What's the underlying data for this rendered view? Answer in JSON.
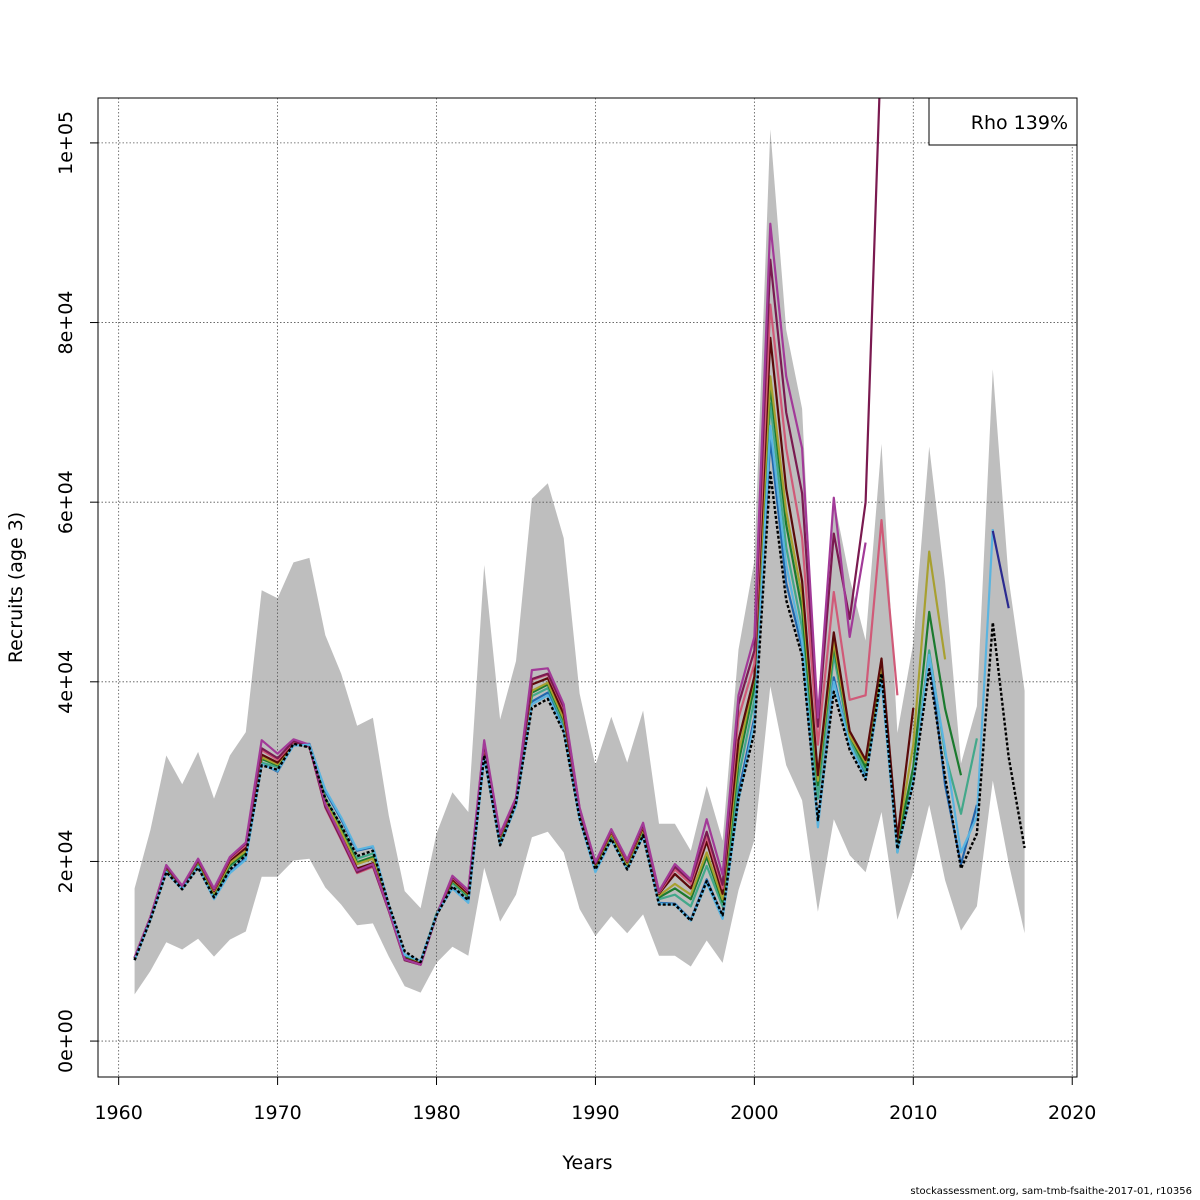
{
  "chart_data": {
    "type": "line",
    "xlabel": "Years",
    "ylabel": "Recruits (age 3)",
    "xlim": [
      1958.7,
      2020.3
    ],
    "ylim": [
      -4000,
      105000
    ],
    "xticks": [
      1960,
      1970,
      1980,
      1990,
      2000,
      2010,
      2020
    ],
    "xtick_labels": [
      "1960",
      "1970",
      "1980",
      "1990",
      "2000",
      "2010",
      "2020"
    ],
    "yticks": [
      0,
      20000,
      40000,
      60000,
      80000,
      100000
    ],
    "ytick_labels": [
      "0e+00",
      "2e+04",
      "4e+04",
      "6e+04",
      "8e+04",
      "1e+05"
    ],
    "grid": true,
    "legend_text": "Rho 139%",
    "legend_position": "top-right",
    "footer": "stockassessment.org, sam-tmb-fsaithe-2017-01, r10356",
    "band": {
      "color": "#bebebe",
      "years": [
        1961,
        1962,
        1963,
        1964,
        1965,
        1966,
        1967,
        1968,
        1969,
        1970,
        1971,
        1972,
        1973,
        1974,
        1975,
        1976,
        1977,
        1978,
        1979,
        1980,
        1981,
        1982,
        1983,
        1984,
        1985,
        1986,
        1987,
        1988,
        1989,
        1990,
        1991,
        1992,
        1993,
        1994,
        1995,
        1996,
        1997,
        1998,
        1999,
        2000,
        2001,
        2002,
        2003,
        2004,
        2005,
        2006,
        2007,
        2008,
        2009,
        2010,
        2011,
        2012,
        2013,
        2014,
        2015,
        2016,
        2017
      ],
      "upper": [
        17000,
        23500,
        31800,
        28600,
        32200,
        27000,
        31800,
        34400,
        50200,
        49300,
        53300,
        53800,
        45200,
        40900,
        35100,
        36000,
        25100,
        16700,
        14800,
        23100,
        27700,
        25500,
        53000,
        35800,
        42300,
        60400,
        62100,
        56000,
        38700,
        30700,
        36100,
        31000,
        36800,
        24200,
        24200,
        21200,
        28400,
        22300,
        43600,
        53500,
        101500,
        79200,
        70400,
        34500,
        60400,
        51500,
        44600,
        66500,
        34300,
        44300,
        66200,
        51100,
        30900,
        37300,
        74800,
        51400,
        39000
      ],
      "lower": [
        5200,
        7800,
        11000,
        10200,
        11400,
        9400,
        11300,
        12200,
        18300,
        18300,
        20100,
        20300,
        17100,
        15200,
        12900,
        13100,
        9400,
        6100,
        5400,
        8700,
        10500,
        9500,
        19300,
        13300,
        16300,
        22700,
        23300,
        21000,
        14700,
        11700,
        13900,
        12000,
        14100,
        9500,
        9500,
        8300,
        11200,
        8700,
        16800,
        22400,
        39500,
        30700,
        26800,
        14400,
        24700,
        20700,
        18800,
        25500,
        13500,
        18900,
        26300,
        17900,
        12300,
        15000,
        29000,
        19800,
        12000
      ]
    },
    "series": [
      {
        "color": "#000000",
        "dashed": true,
        "start": 1961,
        "values": [
          9000,
          13500,
          18800,
          16900,
          19300,
          16000,
          19100,
          20700,
          30700,
          30200,
          33100,
          32700,
          27000,
          24000,
          20600,
          21200,
          15200,
          10000,
          8800,
          14000,
          17200,
          15700,
          31800,
          21800,
          26500,
          37100,
          38100,
          34400,
          24800,
          19100,
          22500,
          19100,
          22900,
          15200,
          15200,
          13400,
          17800,
          14000,
          27100,
          34400,
          63300,
          49100,
          42900,
          24600,
          38900,
          32400,
          29100,
          40900,
          21400,
          28700,
          41400,
          29400,
          19200,
          23100,
          46600,
          31600,
          21500
        ]
      },
      {
        "color": "#2166ac",
        "start": 1961,
        "values": [
          9100,
          13600,
          19000,
          17000,
          19600,
          15900,
          18800,
          20400,
          30900,
          30000,
          33000,
          33100,
          27800,
          24700,
          21200,
          21600,
          15100,
          9600,
          8900,
          14100,
          17100,
          15500,
          31700,
          22000,
          26300,
          37800,
          38800,
          34900,
          24900,
          18900,
          22700,
          19300,
          23100,
          15400,
          15300,
          13500,
          18000,
          13800,
          27700,
          36000,
          67000,
          51000,
          43800,
          24200,
          40500,
          32900,
          29500,
          41000,
          21800,
          29700,
          43200,
          28500,
          19700,
          26300
        ]
      },
      {
        "color": "#43a88a",
        "start": 1961,
        "values": [
          9200,
          13700,
          19100,
          17000,
          19800,
          16200,
          19400,
          20800,
          31000,
          30500,
          33000,
          32900,
          27100,
          23900,
          20300,
          20900,
          15000,
          9400,
          8800,
          14200,
          17600,
          16000,
          32200,
          22500,
          26600,
          38400,
          39300,
          35300,
          25100,
          19200,
          22900,
          19500,
          23400,
          15800,
          16300,
          15000,
          19500,
          15000,
          29400,
          38000,
          71000,
          55000,
          46000,
          27000,
          43000,
          33500,
          30000,
          41500,
          21000,
          29500,
          43500,
          32000,
          25300,
          33700
        ]
      },
      {
        "color": "#1b7a2e",
        "start": 1961,
        "values": [
          9200,
          13700,
          19200,
          17100,
          19900,
          16400,
          19600,
          21000,
          31400,
          30700,
          33100,
          32900,
          26800,
          23500,
          19900,
          20500,
          14900,
          9300,
          8700,
          14100,
          17800,
          16200,
          32400,
          22600,
          26700,
          38800,
          39700,
          35700,
          25300,
          19400,
          23000,
          19600,
          23500,
          16000,
          17000,
          15800,
          20500,
          15500,
          31000,
          39500,
          73000,
          57500,
          48000,
          28500,
          44000,
          34000,
          30500,
          42000,
          22000,
          30500,
          47800,
          37000,
          29600
        ]
      },
      {
        "color": "#a8a030",
        "start": 1961,
        "values": [
          9200,
          13700,
          19300,
          17100,
          20000,
          16500,
          19800,
          21200,
          31600,
          30800,
          33100,
          32900,
          26700,
          23300,
          19700,
          20300,
          14800,
          9200,
          8700,
          14100,
          17900,
          16300,
          32600,
          22700,
          26800,
          39000,
          39900,
          35900,
          25400,
          19500,
          23100,
          19700,
          23600,
          16200,
          17500,
          16300,
          21000,
          15800,
          32000,
          40500,
          74000,
          59000,
          49500,
          29000,
          44500,
          34000,
          31000,
          42000,
          22500,
          33000,
          54500,
          42500
        ]
      },
      {
        "color": "#5a0a0a",
        "start": 1961,
        "values": [
          9200,
          13700,
          19400,
          17100,
          20100,
          16700,
          20100,
          21500,
          31900,
          31000,
          33200,
          32800,
          26300,
          22800,
          19200,
          19800,
          14700,
          9200,
          8600,
          14000,
          18000,
          16400,
          32800,
          22800,
          26900,
          39700,
          40400,
          36400,
          25600,
          19700,
          23300,
          19900,
          23800,
          16400,
          18600,
          17000,
          22200,
          16400,
          33500,
          40600,
          78300,
          61500,
          51200,
          29600,
          45500,
          34500,
          31300,
          42600,
          22600,
          37100
        ]
      },
      {
        "color": "#d05a78",
        "start": 1961,
        "values": [
          9300,
          13800,
          19500,
          17200,
          20200,
          16800,
          20300,
          21800,
          32400,
          31300,
          33300,
          32800,
          26000,
          22400,
          18700,
          19400,
          14500,
          9000,
          8500,
          14000,
          18200,
          16600,
          33000,
          22900,
          27000,
          40200,
          40800,
          37000,
          25800,
          19800,
          23400,
          20000,
          24000,
          16500,
          19100,
          17500,
          22800,
          17000,
          36000,
          42000,
          82000,
          66000,
          56000,
          33000,
          50000,
          38000,
          38500,
          58000,
          38500
        ]
      },
      {
        "color": "#7a1a50",
        "start": 1961,
        "values": [
          9300,
          13800,
          19500,
          17200,
          20200,
          16900,
          20400,
          22000,
          32600,
          31500,
          33400,
          32800,
          26100,
          22500,
          18800,
          19500,
          14500,
          9000,
          8500,
          14000,
          18300,
          16700,
          33200,
          23000,
          27000,
          40300,
          40900,
          37200,
          25900,
          19800,
          23500,
          20100,
          24100,
          16600,
          19400,
          17800,
          23300,
          17400,
          37500,
          43500,
          87000,
          70000,
          61000,
          35000,
          56500,
          47000,
          60000,
          112000
        ]
      },
      {
        "color": "#a23a98",
        "start": 1961,
        "values": [
          9300,
          13800,
          19600,
          17300,
          20300,
          17000,
          20500,
          22100,
          33500,
          32000,
          33600,
          33000,
          26400,
          22800,
          19000,
          19700,
          14600,
          9100,
          8500,
          14000,
          18400,
          16800,
          33500,
          23100,
          27100,
          41300,
          41500,
          37500,
          26000,
          19900,
          23600,
          20200,
          24300,
          16700,
          19700,
          18000,
          24700,
          18500,
          38500,
          45000,
          91000,
          74000,
          66000,
          36000,
          60500,
          45000,
          55500
        ]
      },
      {
        "color": "#5ab4e0",
        "start": 1961,
        "values": [
          9000,
          13500,
          18800,
          16900,
          19400,
          15800,
          18700,
          20200,
          30800,
          30100,
          32900,
          33000,
          28000,
          24900,
          21300,
          21700,
          15200,
          9600,
          8900,
          14100,
          17000,
          15400,
          31600,
          21800,
          26200,
          37500,
          38500,
          34600,
          24700,
          18800,
          22400,
          19100,
          22800,
          15300,
          15200,
          13400,
          17600,
          13600,
          26800,
          35500,
          68500,
          53000,
          44500,
          23800,
          40000,
          33000,
          29200,
          40000,
          21000,
          29000,
          43000,
          32500,
          21000,
          25000,
          57000
        ]
      },
      {
        "color": "#2a2a90",
        "start": 2015,
        "values": [
          56800,
          48200
        ]
      }
    ]
  }
}
